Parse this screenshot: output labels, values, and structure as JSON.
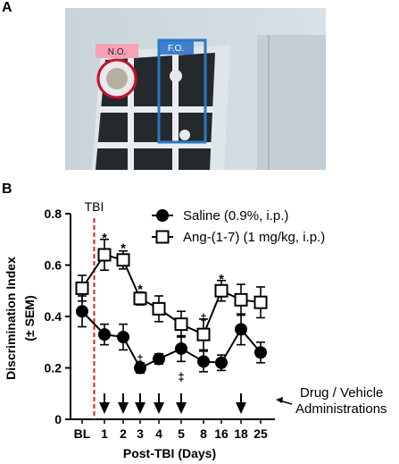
{
  "panel_a": {
    "label": "A",
    "photo": {
      "novel_object_label": "N.O.",
      "familiar_object_label": "F.O.",
      "novel_object_color": "#c8102e",
      "familiar_object_color": "#2b78c5",
      "novel_label_bg": "#f4a3b4",
      "familiar_label_bg": "#3f7fd0"
    }
  },
  "panel_b": {
    "label": "B",
    "tbi_marker": "TBI",
    "drug_label_line1": "Drug / Vehicle",
    "drug_label_line2": "Administrations"
  },
  "chart_data": {
    "type": "line",
    "categories": [
      "BL",
      "1",
      "2",
      "3",
      "4",
      "5",
      "8",
      "16",
      "18",
      "25"
    ],
    "xlabel": "Post-TBI  (Days)",
    "ylabel_line1": "Discrimination Index",
    "ylabel_line2": "(± SEM)",
    "ylim": [
      0,
      0.8
    ],
    "yticks": [
      "0",
      "0.2",
      "0.4",
      "0.6",
      "0.8"
    ],
    "series": [
      {
        "name": "Saline (0.9%, i.p.)",
        "marker": "filled-circle",
        "values": [
          0.42,
          0.33,
          0.32,
          0.2,
          0.235,
          0.275,
          0.225,
          0.22,
          0.35,
          0.26
        ],
        "errors": [
          0.06,
          0.04,
          0.05,
          0.02,
          0.02,
          0.05,
          0.04,
          0.03,
          0.06,
          0.04
        ]
      },
      {
        "name": "Ang-(1-7) (1 mg/kg, i.p.)",
        "marker": "open-square",
        "values": [
          0.51,
          0.64,
          0.62,
          0.47,
          0.43,
          0.37,
          0.33,
          0.5,
          0.465,
          0.455
        ],
        "errors": [
          0.05,
          0.06,
          0.035,
          0.025,
          0.05,
          0.05,
          0.06,
          0.04,
          0.06,
          0.06
        ]
      }
    ],
    "annotations": [
      {
        "category": "1",
        "text": "*",
        "y": 0.71
      },
      {
        "category": "2",
        "text": "*",
        "y": 0.67
      },
      {
        "category": "3",
        "text": "*",
        "y": 0.51
      },
      {
        "category": "3",
        "text": "‡",
        "y": 0.24
      },
      {
        "category": "5",
        "text": "‡",
        "y": 0.17
      },
      {
        "category": "8",
        "text": "‡",
        "y": 0.4
      },
      {
        "category": "16",
        "text": "*",
        "y": 0.55
      }
    ],
    "tbi_at": "BL-1",
    "drug_days": [
      "1",
      "2",
      "3",
      "4",
      "5",
      "18"
    ],
    "tbi_line_color": "#e02020"
  }
}
